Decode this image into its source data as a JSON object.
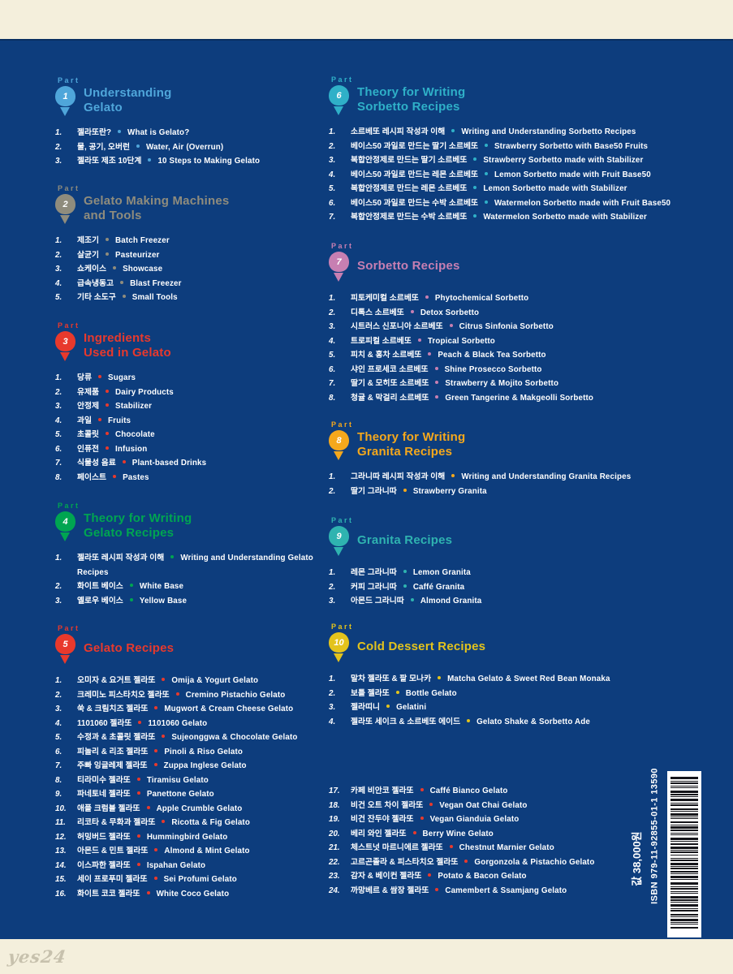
{
  "part_label": "Part",
  "footer": {
    "price": "값 38,000원",
    "isbn": "ISBN 979-11-92855-01-1 13590",
    "watermark": "yes24"
  },
  "colors": {
    "page_background": "#f4efdc",
    "cover_background": "#0d3d7d",
    "text": "#ffffff"
  },
  "parts": [
    {
      "id": "p1",
      "num": "1",
      "column": "left",
      "color": "#4FA6DA",
      "title": "Understanding\nGelato",
      "items": [
        {
          "n": "1.",
          "ko": "젤라또란?",
          "en": "What is Gelato?"
        },
        {
          "n": "2.",
          "ko": "물, 공기, 오버런",
          "en": "Water, Air (Overrun)"
        },
        {
          "n": "3.",
          "ko": "젤라또 제조 10단계",
          "en": "10 Steps to Making Gelato"
        }
      ]
    },
    {
      "id": "p2",
      "num": "2",
      "column": "left",
      "color": "#8F8C7D",
      "title": "Gelato Making Machines\nand Tools",
      "items": [
        {
          "n": "1.",
          "ko": "제조기",
          "en": "Batch Freezer"
        },
        {
          "n": "2.",
          "ko": "살균기",
          "en": "Pasteurizer"
        },
        {
          "n": "3.",
          "ko": "쇼케이스",
          "en": "Showcase"
        },
        {
          "n": "4.",
          "ko": "급속냉동고",
          "en": "Blast Freezer"
        },
        {
          "n": "5.",
          "ko": "기타 소도구",
          "en": "Small Tools"
        }
      ]
    },
    {
      "id": "p3",
      "num": "3",
      "column": "left",
      "color": "#E8392C",
      "title": "Ingredients\nUsed in Gelato",
      "items": [
        {
          "n": "1.",
          "ko": "당류",
          "en": "Sugars"
        },
        {
          "n": "2.",
          "ko": "유제품",
          "en": "Dairy Products"
        },
        {
          "n": "3.",
          "ko": "안정제",
          "en": "Stabilizer"
        },
        {
          "n": "4.",
          "ko": "과일",
          "en": "Fruits"
        },
        {
          "n": "5.",
          "ko": "초콜릿",
          "en": "Chocolate"
        },
        {
          "n": "6.",
          "ko": "인퓨전",
          "en": "Infusion"
        },
        {
          "n": "7.",
          "ko": "식물성 음료",
          "en": "Plant-based Drinks"
        },
        {
          "n": "8.",
          "ko": "페이스트",
          "en": "Pastes"
        }
      ]
    },
    {
      "id": "p4",
      "num": "4",
      "column": "left",
      "color": "#00A551",
      "title": "Theory for Writing\nGelato Recipes",
      "items": [
        {
          "n": "1.",
          "ko": "젤라또 레시피 작성과 이해",
          "en": "Writing and Understanding Gelato Recipes"
        },
        {
          "n": "2.",
          "ko": "화이트 베이스",
          "en": "White Base"
        },
        {
          "n": "3.",
          "ko": "옐로우 베이스",
          "en": "Yellow Base"
        }
      ]
    },
    {
      "id": "p5",
      "num": "5",
      "column": "left",
      "color": "#E8392C",
      "title": "Gelato Recipes",
      "items": [
        {
          "n": "1.",
          "ko": "오미자 & 요거트 젤라또",
          "en": "Omija & Yogurt Gelato"
        },
        {
          "n": "2.",
          "ko": "크레미노 피스타치오 젤라또",
          "en": "Cremino Pistachio Gelato"
        },
        {
          "n": "3.",
          "ko": "쑥 & 크림치즈 젤라또",
          "en": "Mugwort & Cream Cheese Gelato"
        },
        {
          "n": "4.",
          "ko": "1101060 젤라또",
          "en": "1101060 Gelato"
        },
        {
          "n": "5.",
          "ko": "수정과 & 초콜릿 젤라또",
          "en": "Sujeonggwa & Chocolate Gelato"
        },
        {
          "n": "6.",
          "ko": "피놀리 & 리조 젤라또",
          "en": "Pinoli & Riso Gelato"
        },
        {
          "n": "7.",
          "ko": "주빠 잉글레제 젤라또",
          "en": "Zuppa Inglese Gelato"
        },
        {
          "n": "8.",
          "ko": "티라미수 젤라또",
          "en": "Tiramisu Gelato"
        },
        {
          "n": "9.",
          "ko": "파네토네 젤라또",
          "en": "Panettone Gelato"
        },
        {
          "n": "10.",
          "ko": "애플 크럼블 젤라또",
          "en": "Apple Crumble Gelato"
        },
        {
          "n": "11.",
          "ko": "리코타 & 무화과 젤라또",
          "en": "Ricotta & Fig Gelato"
        },
        {
          "n": "12.",
          "ko": "허밍버드 젤라또",
          "en": "Hummingbird Gelato"
        },
        {
          "n": "13.",
          "ko": "아몬드 & 민트 젤라또",
          "en": "Almond & Mint Gelato"
        },
        {
          "n": "14.",
          "ko": "이스파한 젤라또",
          "en": "Ispahan Gelato"
        },
        {
          "n": "15.",
          "ko": "세이 프로푸미 젤라또",
          "en": "Sei Profumi Gelato"
        },
        {
          "n": "16.",
          "ko": "화이트 코코 젤라또",
          "en": "White Coco Gelato"
        }
      ]
    },
    {
      "id": "p6",
      "num": "6",
      "column": "right",
      "color": "#2FB0C8",
      "title": "Theory for Writing\nSorbetto Recipes",
      "items": [
        {
          "n": "1.",
          "ko": "소르베또 레시피 작성과 이해",
          "en": "Writing and Understanding Sorbetto Recipes"
        },
        {
          "n": "2.",
          "ko": "베이스50 과일로 만드는 딸기 소르베또",
          "en": "Strawberry Sorbetto with Base50 Fruits"
        },
        {
          "n": "3.",
          "ko": "복합안정제로 만드는 딸기 소르베또",
          "en": "Strawberry Sorbetto made with Stabilizer"
        },
        {
          "n": "4.",
          "ko": "베이스50 과일로 만드는 레몬 소르베또",
          "en": "Lemon Sorbetto made with Fruit Base50"
        },
        {
          "n": "5.",
          "ko": "복합안정제로 만드는 레몬 소르베또",
          "en": "Lemon Sorbetto made with Stabilizer"
        },
        {
          "n": "6.",
          "ko": "베이스50 과일로 만드는 수박 소르베또",
          "en": "Watermelon Sorbetto made with Fruit Base50"
        },
        {
          "n": "7.",
          "ko": "복합안정제로 만드는 수박 소르베또",
          "en": "Watermelon Sorbetto made with Stabilizer"
        }
      ]
    },
    {
      "id": "p7",
      "num": "7",
      "column": "right",
      "color": "#C77FB2",
      "title": "Sorbetto Recipes",
      "items": [
        {
          "n": "1.",
          "ko": "피토케미컬 소르베또",
          "en": "Phytochemical Sorbetto"
        },
        {
          "n": "2.",
          "ko": "디톡스 소르베또",
          "en": "Detox Sorbetto"
        },
        {
          "n": "3.",
          "ko": "시트러스 신포니아 소르베또",
          "en": "Citrus Sinfonia Sorbetto"
        },
        {
          "n": "4.",
          "ko": "트로피컬 소르베또",
          "en": "Tropical Sorbetto"
        },
        {
          "n": "5.",
          "ko": "피치 & 홍차 소르베또",
          "en": "Peach & Black Tea Sorbetto"
        },
        {
          "n": "6.",
          "ko": "샤인 프로세코 소르베또",
          "en": "Shine Prosecco Sorbetto"
        },
        {
          "n": "7.",
          "ko": "딸기 & 모히또 소르베또",
          "en": "Strawberry & Mojito Sorbetto"
        },
        {
          "n": "8.",
          "ko": "청귤 & 막걸리 소르베또",
          "en": "Green Tangerine & Makgeolli Sorbetto"
        }
      ]
    },
    {
      "id": "p8",
      "num": "8",
      "column": "right",
      "color": "#F5A81C",
      "title": "Theory for Writing\nGranita Recipes",
      "items": [
        {
          "n": "1.",
          "ko": "그라니따 레시피 작성과 이해",
          "en": "Writing and Understanding Granita Recipes"
        },
        {
          "n": "2.",
          "ko": "딸기 그라니따",
          "en": "Strawberry Granita"
        }
      ]
    },
    {
      "id": "p9",
      "num": "9",
      "column": "right",
      "color": "#2FB3B0",
      "title": "Granita Recipes",
      "items": [
        {
          "n": "1.",
          "ko": "레몬 그라니따",
          "en": "Lemon Granita"
        },
        {
          "n": "2.",
          "ko": "커피 그라니따",
          "en": "Caffé Granita"
        },
        {
          "n": "3.",
          "ko": "아몬드 그라니따",
          "en": "Almond Granita"
        }
      ]
    },
    {
      "id": "p10",
      "num": "10",
      "column": "right",
      "color": "#E3C31C",
      "title": "Cold Dessert Recipes",
      "items": [
        {
          "n": "1.",
          "ko": "말차 젤라또 & 팥 모나카",
          "en": "Matcha Gelato & Sweet Red Bean Monaka"
        },
        {
          "n": "2.",
          "ko": "보틀 젤라또",
          "en": "Bottle Gelato"
        },
        {
          "n": "3.",
          "ko": "젤라띠니",
          "en": "Gelatini"
        },
        {
          "n": "4.",
          "ko": "젤라또 세이크 & 소르베또 에이드",
          "en": "Gelato Shake & Sorbetto Ade"
        }
      ]
    },
    {
      "id": "p5cont",
      "num": null,
      "column": "right",
      "color": "#E8392C",
      "title": null,
      "items": [
        {
          "n": "17.",
          "ko": "카페 비안코 젤라또",
          "en": "Caffé Bianco Gelato"
        },
        {
          "n": "18.",
          "ko": "비건 오트 차이 젤라또",
          "en": "Vegan Oat Chai Gelato"
        },
        {
          "n": "19.",
          "ko": "비건 잔두야 젤라또",
          "en": "Vegan Gianduia Gelato"
        },
        {
          "n": "20.",
          "ko": "베리 와인 젤라또",
          "en": "Berry Wine Gelato"
        },
        {
          "n": "21.",
          "ko": "체스트넛 마르니에르 젤라또",
          "en": "Chestnut Marnier Gelato"
        },
        {
          "n": "22.",
          "ko": "고르곤졸라 & 피스타치오 젤라또",
          "en": "Gorgonzola & Pistachio Gelato"
        },
        {
          "n": "23.",
          "ko": "감자 & 베이컨 젤라또",
          "en": "Potato & Bacon Gelato"
        },
        {
          "n": "24.",
          "ko": "까망베르 & 쌈장 젤라또",
          "en": "Camembert & Ssamjang Gelato"
        }
      ]
    }
  ]
}
